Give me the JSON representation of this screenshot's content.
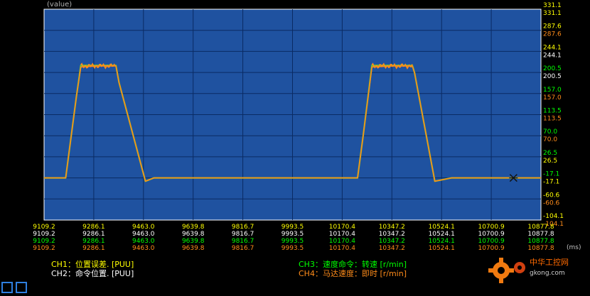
{
  "y_axis_label": "(value)",
  "y_ticks": [
    {
      "value": "331.1",
      "color": "#ffff00"
    },
    {
      "value": "331.1",
      "color": "#ffff00"
    },
    {
      "value": "287.6",
      "color": "#ffff00"
    },
    {
      "value": "287.6",
      "color": "#ff8c1a"
    },
    {
      "value": "244.1",
      "color": "#ffff00"
    },
    {
      "value": "244.1",
      "color": "#ffffff"
    },
    {
      "value": "200.5",
      "color": "#00ff00"
    },
    {
      "value": "200.5",
      "color": "#ffffff"
    },
    {
      "value": "157.0",
      "color": "#00ff00"
    },
    {
      "value": "157.0",
      "color": "#ff8c1a"
    },
    {
      "value": "113.5",
      "color": "#00ff00"
    },
    {
      "value": "113.5",
      "color": "#ff8c1a"
    },
    {
      "value": "70.0",
      "color": "#00ff00"
    },
    {
      "value": "70.0",
      "color": "#ff8c1a"
    },
    {
      "value": "26.5",
      "color": "#00ff00"
    },
    {
      "value": "26.5",
      "color": "#ffff00"
    },
    {
      "value": "-17.1",
      "color": "#00ff00"
    },
    {
      "value": "-17.1",
      "color": "#ffff00"
    },
    {
      "value": "-60.6",
      "color": "#ffff00"
    },
    {
      "value": "-60.6",
      "color": "#ff8c1a"
    },
    {
      "value": "-104.1",
      "color": "#ffff00"
    },
    {
      "value": "-104.1",
      "color": "#ff8c1a"
    }
  ],
  "x_ticks": [
    "9109.2",
    "9286.1",
    "9463.0",
    "9639.8",
    "9816.7",
    "9993.5",
    "10170.4",
    "10347.2",
    "10524.1",
    "10700.9",
    "10877.8"
  ],
  "x_row_colors": [
    "#ffff00",
    "#ffffff",
    "#00ff00",
    "#ff8c1a"
  ],
  "x_unit": "(ms)",
  "channels": {
    "ch1": {
      "label": "CH1：位置误差. [PUU]",
      "color": "#ffff00"
    },
    "ch2": {
      "label": "CH2：命令位置. [PUU]",
      "color": "#ffffff"
    },
    "ch3": {
      "label": "CH3：速度命令：转速 [r/min]",
      "color": "#00ff00"
    },
    "ch4": {
      "label": "CH4：马达速度：即时 [r/min]",
      "color": "#ff8c1a"
    }
  },
  "watermark": {
    "line1": "中华工控网",
    "line2": "gkong.com"
  },
  "colors": {
    "plot_bg": "#1f52a0",
    "grid": "#0a2b63",
    "trace_speed_cmd": "#66cc33",
    "trace_motor": "#ff8c1a",
    "cursor": "#111111"
  },
  "chart_data": {
    "type": "line",
    "x_unit": "ms",
    "xlim": [
      9109.2,
      10877.8
    ],
    "ylim": [
      -104.1,
      331.1
    ],
    "series": [
      {
        "name": "CH3：速度命令：转速 [r/min]",
        "x": [
          9109.2,
          9186,
          9224,
          9240,
          9365,
          9376,
          9470,
          9500,
          10225,
          10245,
          10276,
          10420,
          10428,
          10500,
          10560,
          10877.8
        ],
        "y": [
          -17.1,
          -17.1,
          150,
          215,
          215,
          180,
          -24,
          -17.1,
          -17.1,
          70,
          215,
          215,
          200,
          -24,
          -17.1,
          -17.1
        ]
      },
      {
        "name": "CH4：马达速度：即时 [r/min]",
        "x": [
          9109.2,
          9186,
          9224,
          9240,
          9300,
          9365,
          9376,
          9470,
          9500,
          10225,
          10245,
          10276,
          10350,
          10420,
          10428,
          10500,
          10560,
          10877.8
        ],
        "y": [
          -17.1,
          -17.1,
          150,
          212,
          214,
          214,
          180,
          -24,
          -17.1,
          -17.1,
          70,
          212,
          214,
          214,
          200,
          -24,
          -17.1,
          -17.1
        ]
      }
    ]
  }
}
